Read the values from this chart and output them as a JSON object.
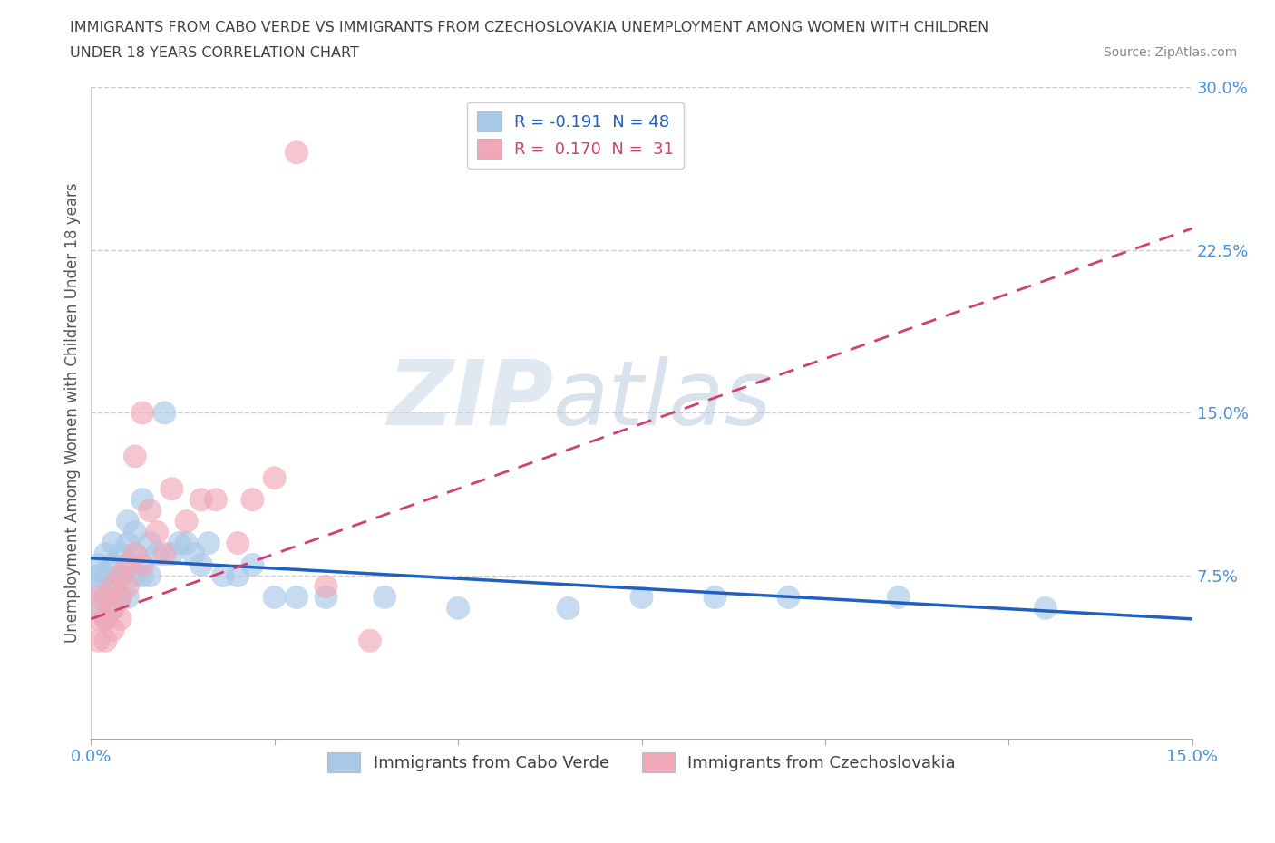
{
  "title_line1": "IMMIGRANTS FROM CABO VERDE VS IMMIGRANTS FROM CZECHOSLOVAKIA UNEMPLOYMENT AMONG WOMEN WITH CHILDREN",
  "title_line2": "UNDER 18 YEARS CORRELATION CHART",
  "source_text": "Source: ZipAtlas.com",
  "ylabel": "Unemployment Among Women with Children Under 18 years",
  "watermark_zip": "ZIP",
  "watermark_atlas": "atlas",
  "xlim": [
    0,
    0.15
  ],
  "ylim": [
    0,
    0.3
  ],
  "xticks": [
    0.0,
    0.025,
    0.05,
    0.075,
    0.1,
    0.125,
    0.15
  ],
  "yticks_right": [
    0.0,
    0.075,
    0.15,
    0.225,
    0.3
  ],
  "cabo_verde_color": "#a8c8e8",
  "czechoslovakia_color": "#f0a8b8",
  "cabo_verde_line_color": "#2060c0",
  "czechoslovakia_line_color": "#d04070",
  "background_color": "#ffffff",
  "grid_color": "#cccccc",
  "title_color": "#404040",
  "right_tick_color": "#4a90d9",
  "cabo_verde_x": [
    0.001,
    0.001,
    0.001,
    0.001,
    0.002,
    0.002,
    0.002,
    0.002,
    0.003,
    0.003,
    0.003,
    0.003,
    0.004,
    0.004,
    0.004,
    0.005,
    0.005,
    0.005,
    0.005,
    0.006,
    0.006,
    0.006,
    0.007,
    0.007,
    0.008,
    0.008,
    0.009,
    0.01,
    0.011,
    0.012,
    0.013,
    0.014,
    0.015,
    0.016,
    0.018,
    0.02,
    0.022,
    0.025,
    0.028,
    0.032,
    0.04,
    0.05,
    0.065,
    0.075,
    0.085,
    0.095,
    0.11,
    0.13
  ],
  "cabo_verde_y": [
    0.075,
    0.08,
    0.07,
    0.06,
    0.085,
    0.075,
    0.065,
    0.055,
    0.09,
    0.08,
    0.07,
    0.06,
    0.085,
    0.075,
    0.065,
    0.1,
    0.09,
    0.08,
    0.065,
    0.095,
    0.085,
    0.075,
    0.11,
    0.075,
    0.09,
    0.075,
    0.085,
    0.15,
    0.085,
    0.09,
    0.09,
    0.085,
    0.08,
    0.09,
    0.075,
    0.075,
    0.08,
    0.065,
    0.065,
    0.065,
    0.065,
    0.06,
    0.06,
    0.065,
    0.065,
    0.065,
    0.065,
    0.06
  ],
  "czechoslovakia_x": [
    0.001,
    0.001,
    0.001,
    0.002,
    0.002,
    0.002,
    0.003,
    0.003,
    0.003,
    0.004,
    0.004,
    0.004,
    0.005,
    0.005,
    0.006,
    0.006,
    0.007,
    0.007,
    0.008,
    0.009,
    0.01,
    0.011,
    0.013,
    0.015,
    0.017,
    0.02,
    0.022,
    0.025,
    0.028,
    0.032,
    0.038
  ],
  "czechoslovakia_y": [
    0.055,
    0.065,
    0.045,
    0.065,
    0.055,
    0.045,
    0.07,
    0.06,
    0.05,
    0.075,
    0.065,
    0.055,
    0.08,
    0.07,
    0.085,
    0.13,
    0.15,
    0.08,
    0.105,
    0.095,
    0.085,
    0.115,
    0.1,
    0.11,
    0.11,
    0.09,
    0.11,
    0.12,
    0.27,
    0.07,
    0.045
  ],
  "cabo_verde_trendline_x": [
    0.0,
    0.15
  ],
  "cabo_verde_trendline_y": [
    0.083,
    0.055
  ],
  "czechoslovakia_trendline_x": [
    0.0,
    0.15
  ],
  "czechoslovakia_trendline_y": [
    0.055,
    0.235
  ]
}
